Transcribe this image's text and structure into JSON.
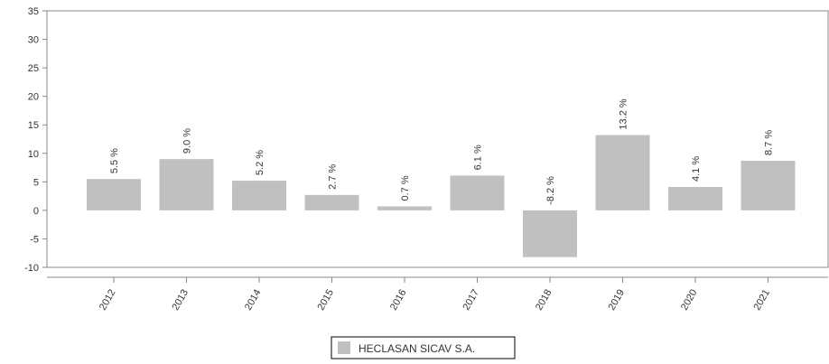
{
  "chart_data": {
    "type": "bar",
    "categories": [
      "2012",
      "2013",
      "2014",
      "2015",
      "2016",
      "2017",
      "2018",
      "2019",
      "2020",
      "2021"
    ],
    "series": [
      {
        "name": "HECLASAN SICAV S.A.",
        "values": [
          5.5,
          9.0,
          5.2,
          2.7,
          0.7,
          6.1,
          -8.2,
          13.2,
          4.1,
          8.7
        ],
        "labels": [
          "5.5 %",
          "9.0 %",
          "5.2 %",
          "2.7 %",
          "0.7 %",
          "6.1 %",
          "-8.2 %",
          "13.2 %",
          "4.1 %",
          "8.7 %"
        ],
        "color": "#c0c0c0"
      }
    ],
    "ylim": [
      -10,
      35
    ],
    "yticks": [
      -10,
      -5,
      0,
      5,
      10,
      15,
      20,
      25,
      30,
      35
    ],
    "ytick_labels": [
      "-10",
      "-5",
      "0",
      "5",
      "10",
      "15",
      "20",
      "25",
      "30",
      "35"
    ],
    "grid": false,
    "legend_position": "bottom"
  },
  "legend": {
    "label": "HECLASAN SICAV S.A."
  }
}
